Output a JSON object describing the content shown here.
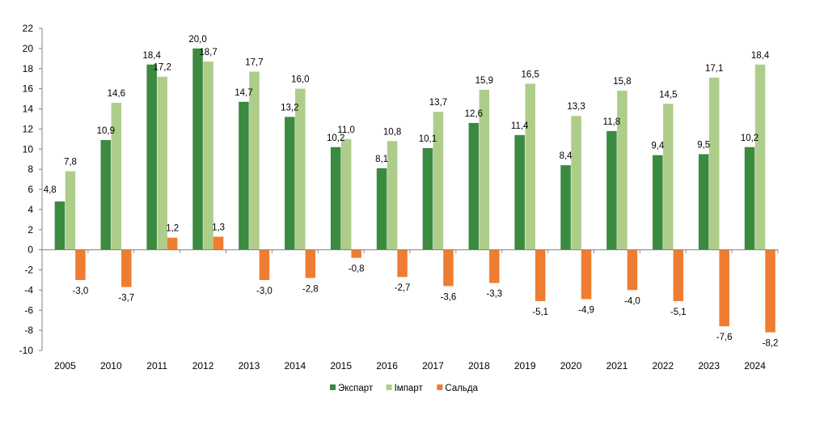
{
  "chart_data": {
    "type": "bar",
    "categories": [
      "2005",
      "2010",
      "2011",
      "2012",
      "2013",
      "2014",
      "2015",
      "2016",
      "2017",
      "2018",
      "2019",
      "2020",
      "2021",
      "2022",
      "2023",
      "2024"
    ],
    "series": [
      {
        "name": "Экспарт",
        "color": "#3a8a3f",
        "values": [
          4.8,
          10.9,
          18.4,
          20.0,
          14.7,
          13.2,
          10.2,
          8.1,
          10.1,
          12.6,
          11.4,
          8.4,
          11.8,
          9.4,
          9.5,
          10.2
        ]
      },
      {
        "name": "Імпарт",
        "color": "#aecd8a",
        "values": [
          7.8,
          14.6,
          17.2,
          18.7,
          17.7,
          16.0,
          11.0,
          10.8,
          13.7,
          15.9,
          16.5,
          13.3,
          15.8,
          14.5,
          17.1,
          18.4
        ]
      },
      {
        "name": "Сальда",
        "color": "#ee7d31",
        "values": [
          -3.0,
          -3.7,
          1.2,
          1.3,
          -3.0,
          -2.8,
          -0.8,
          -2.7,
          -3.6,
          -3.3,
          -5.1,
          -4.9,
          -4.0,
          -5.1,
          -7.6,
          -8.2
        ]
      }
    ],
    "y_ticks": [
      "22",
      "20",
      "18",
      "16",
      "14",
      "12",
      "10",
      "8",
      "6",
      "4",
      "2",
      "0",
      "-2",
      "-4",
      "-6",
      "-8",
      "-10"
    ],
    "ylim": [
      -10,
      22
    ],
    "decimal_separator": ",",
    "legend_position": "bottom",
    "grid": false
  }
}
